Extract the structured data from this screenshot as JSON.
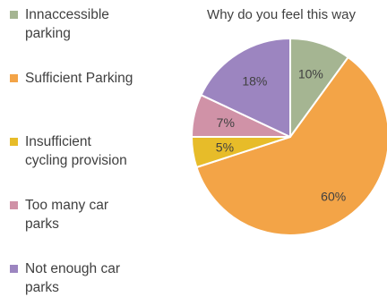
{
  "chart_data": {
    "type": "pie",
    "title": "Why do you feel this way",
    "legend_position": "left",
    "categories": [
      "Innaccessible parking",
      "Sufficient Parking",
      "Insufficient cycling provision",
      "Too many car parks",
      "Not enough car parks"
    ],
    "values": [
      10,
      60,
      5,
      7,
      18
    ],
    "data_labels": [
      "10%",
      "60%",
      "5%",
      "7%",
      "18%"
    ],
    "colors": [
      "#a5b592",
      "#f3a447",
      "#e7bc29",
      "#d092a7",
      "#9c85c0"
    ]
  }
}
